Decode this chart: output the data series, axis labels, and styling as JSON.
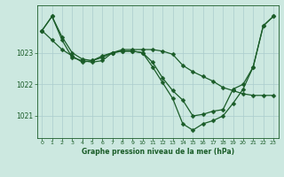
{
  "title": "Graphe pression niveau de la mer (hPa)",
  "bg_color": "#cce8e0",
  "grid_color": "#aacccc",
  "line_color": "#1a5c28",
  "xlim": [
    -0.5,
    23.5
  ],
  "ylim": [
    1020.3,
    1024.5
  ],
  "yticks": [
    1021,
    1022,
    1023
  ],
  "xticks": [
    0,
    1,
    2,
    3,
    4,
    5,
    6,
    7,
    8,
    9,
    10,
    11,
    12,
    13,
    14,
    15,
    16,
    17,
    18,
    19,
    20,
    21,
    22,
    23
  ],
  "series1_x": [
    0,
    1,
    2,
    3,
    4,
    5,
    6,
    7,
    8,
    9,
    10,
    11,
    12,
    13,
    14,
    15,
    16,
    17,
    18,
    19,
    20,
    21,
    22,
    23
  ],
  "series1_y": [
    1023.7,
    1024.15,
    1023.5,
    1023.0,
    1022.8,
    1022.75,
    1022.85,
    1023.0,
    1023.05,
    1023.05,
    1023.0,
    1022.7,
    1022.2,
    1021.8,
    1021.5,
    1021.0,
    1021.05,
    1021.15,
    1021.2,
    1021.85,
    1022.0,
    1022.55,
    1023.85,
    1024.15
  ],
  "series2_x": [
    0,
    1,
    2,
    3,
    4,
    5,
    6,
    7,
    8,
    9,
    10,
    11,
    12,
    13,
    14,
    15,
    16,
    17,
    18,
    19,
    20,
    21,
    22,
    23
  ],
  "series2_y": [
    1023.7,
    1023.4,
    1023.1,
    1022.9,
    1022.7,
    1022.75,
    1022.9,
    1023.0,
    1023.1,
    1023.1,
    1023.1,
    1023.1,
    1023.05,
    1022.95,
    1022.6,
    1022.4,
    1022.25,
    1022.1,
    1021.9,
    1021.8,
    1021.7,
    1021.65,
    1021.65,
    1021.65
  ],
  "series3_x": [
    0,
    1,
    2,
    3,
    4,
    5,
    6,
    7,
    8,
    9,
    10,
    11,
    12,
    13,
    14,
    15,
    16,
    17,
    18,
    19,
    20,
    21,
    22,
    23
  ],
  "series3_y": [
    1023.7,
    1024.15,
    1023.4,
    1022.85,
    1022.75,
    1022.7,
    1022.75,
    1023.0,
    1023.05,
    1023.05,
    1023.0,
    1022.55,
    1022.05,
    1021.55,
    1020.75,
    1020.55,
    1020.75,
    1020.85,
    1021.0,
    1021.4,
    1021.85,
    1022.55,
    1023.85,
    1024.15
  ]
}
